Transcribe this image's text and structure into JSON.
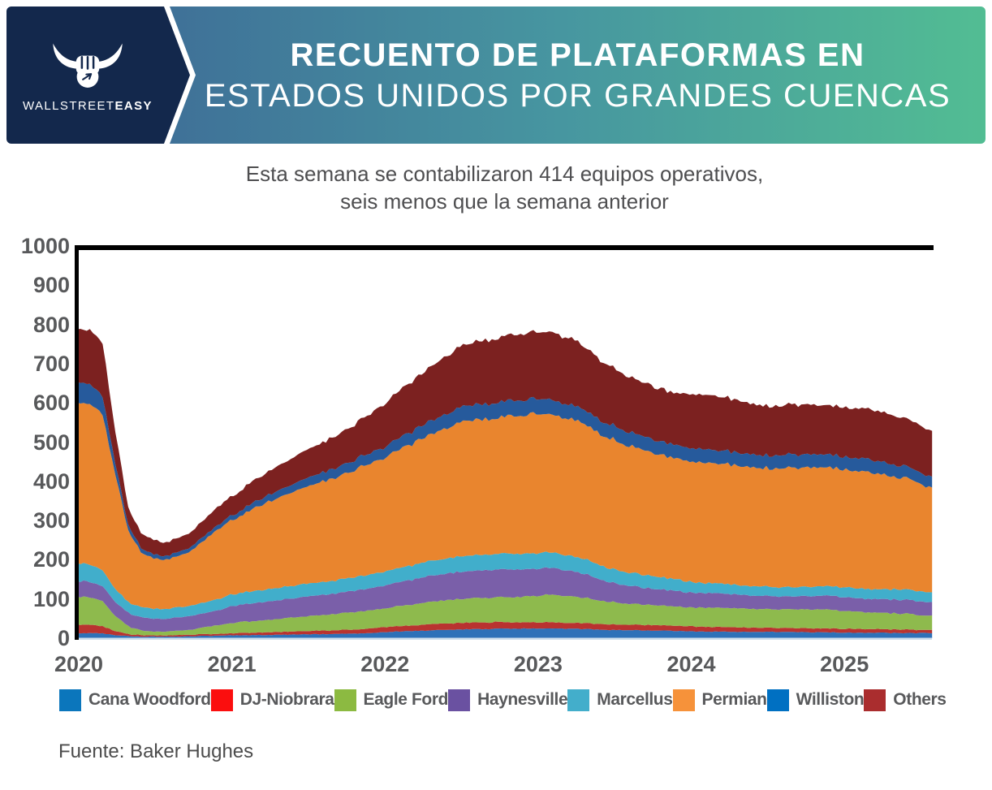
{
  "header": {
    "logo": {
      "brand_prefix": "WALLSTREET",
      "brand_suffix": "EASY",
      "icon": "bull-fist-icon"
    },
    "title_line1": "RECUENTO DE PLATAFORMAS EN",
    "title_line2": "ESTADOS UNIDOS POR GRANDES CUENCAS",
    "colors": {
      "navy": "#13284c",
      "gradient_start": "#3f7198",
      "gradient_mid": "#4796a0",
      "gradient_end": "#52bd93"
    }
  },
  "subtitle": {
    "line1": "Esta semana se contabilizaron 414 equipos operativos,",
    "line2": "seis menos que la semana anterior"
  },
  "source": "Fuente: Baker Hughes",
  "chart_data": {
    "type": "area",
    "stacked": true,
    "title": "Recuento de plataformas en Estados Unidos por grandes cuencas",
    "xlabel": "",
    "ylabel": "",
    "ylim": [
      0,
      1000
    ],
    "yticks": [
      0,
      100,
      200,
      300,
      400,
      500,
      600,
      700,
      800,
      900,
      1000
    ],
    "x_start_year": 2020,
    "x_resolution": "monthly",
    "x_range": [
      "2020-01",
      "2025-08"
    ],
    "x_tick_years": [
      2020,
      2021,
      2022,
      2023,
      2024,
      2025
    ],
    "grid": false,
    "legend_position": "bottom",
    "series": [
      {
        "id": "cana_woodford",
        "name": "Cana Woodford",
        "color": "#2e71b8",
        "legend_color": "#0b76bc",
        "values": [
          13,
          13,
          12,
          8,
          5,
          4,
          4,
          4,
          4,
          5,
          6,
          6,
          7,
          7,
          8,
          8,
          9,
          9,
          10,
          10,
          11,
          11,
          12,
          13,
          15,
          17,
          18,
          19,
          20,
          21,
          22,
          23,
          23,
          24,
          24,
          25,
          25,
          25,
          24,
          24,
          23,
          22,
          21,
          20,
          20,
          19,
          19,
          18,
          17,
          17,
          17,
          16,
          16,
          16,
          16,
          16,
          16,
          15,
          15,
          15,
          14,
          14,
          14,
          14,
          13,
          13,
          13,
          13
        ]
      },
      {
        "id": "dj_niobrara",
        "name": "DJ-Niobrara",
        "color": "#b93330",
        "legend_color": "#fb0e0e",
        "values": [
          22,
          21,
          19,
          10,
          5,
          4,
          3,
          3,
          4,
          4,
          4,
          5,
          5,
          6,
          6,
          7,
          7,
          8,
          8,
          9,
          9,
          10,
          10,
          12,
          13,
          14,
          14,
          15,
          16,
          16,
          17,
          17,
          17,
          17,
          16,
          16,
          16,
          16,
          15,
          15,
          15,
          14,
          14,
          14,
          14,
          14,
          13,
          13,
          13,
          12,
          12,
          12,
          11,
          11,
          10,
          10,
          10,
          10,
          10,
          10,
          10,
          10,
          9,
          9,
          9,
          9,
          8,
          8
        ]
      },
      {
        "id": "eagle_ford",
        "name": "Eagle Ford",
        "color": "#8eba4d",
        "legend_color": "#8cba41",
        "values": [
          72,
          70,
          64,
          38,
          20,
          12,
          10,
          10,
          11,
          13,
          18,
          22,
          25,
          28,
          30,
          32,
          34,
          36,
          38,
          40,
          41,
          43,
          45,
          46,
          47,
          50,
          52,
          55,
          57,
          59,
          61,
          62,
          62,
          63,
          64,
          65,
          68,
          70,
          69,
          67,
          64,
          60,
          57,
          54,
          52,
          51,
          50,
          50,
          48,
          49,
          49,
          48,
          48,
          47,
          47,
          47,
          48,
          48,
          48,
          48,
          45,
          44,
          43,
          42,
          41,
          40,
          38,
          36
        ]
      },
      {
        "id": "haynesville",
        "name": "Haynesville",
        "color": "#7a5fa9",
        "legend_color": "#6a51a1",
        "values": [
          40,
          39,
          38,
          36,
          34,
          33,
          33,
          33,
          34,
          35,
          36,
          38,
          43,
          44,
          46,
          47,
          48,
          49,
          50,
          51,
          52,
          53,
          55,
          56,
          58,
          61,
          63,
          65,
          67,
          68,
          69,
          70,
          70,
          71,
          71,
          70,
          70,
          69,
          67,
          64,
          60,
          55,
          50,
          46,
          44,
          42,
          41,
          40,
          38,
          38,
          37,
          36,
          35,
          34,
          34,
          33,
          33,
          34,
          34,
          35,
          35,
          34,
          34,
          35,
          35,
          35,
          35,
          34
        ]
      },
      {
        "id": "marcellus",
        "name": "Marcellus",
        "color": "#41aecb",
        "legend_color": "#43aecb",
        "values": [
          45,
          44,
          41,
          33,
          28,
          26,
          25,
          25,
          26,
          26,
          27,
          28,
          30,
          30,
          31,
          31,
          32,
          32,
          33,
          33,
          33,
          34,
          34,
          35,
          35,
          36,
          37,
          38,
          38,
          39,
          40,
          40,
          40,
          40,
          40,
          40,
          40,
          40,
          39,
          38,
          37,
          36,
          35,
          34,
          33,
          32,
          31,
          30,
          27,
          26,
          25,
          25,
          24,
          24,
          24,
          24,
          24,
          24,
          24,
          24,
          25,
          25,
          25,
          25,
          26,
          26,
          26,
          25
        ]
      },
      {
        "id": "permian",
        "name": "Permian",
        "color": "#e9852e",
        "legend_color": "#f6923a",
        "values": [
          410,
          408,
          400,
          290,
          185,
          140,
          128,
          125,
          130,
          140,
          160,
          178,
          190,
          200,
          212,
          222,
          232,
          240,
          248,
          254,
          260,
          268,
          276,
          283,
          290,
          300,
          308,
          318,
          326,
          334,
          342,
          346,
          346,
          348,
          352,
          354,
          355,
          353,
          351,
          349,
          342,
          334,
          330,
          325,
          320,
          314,
          310,
          308,
          305,
          307,
          306,
          305,
          302,
          300,
          302,
          303,
          304,
          303,
          302,
          304,
          300,
          298,
          296,
          292,
          288,
          282,
          274,
          266
        ]
      },
      {
        "id": "williston",
        "name": "Williston",
        "color": "#265a9c",
        "legend_color": "#0070c2",
        "values": [
          52,
          50,
          47,
          28,
          14,
          11,
          10,
          10,
          10,
          10,
          11,
          11,
          12,
          14,
          16,
          17,
          19,
          20,
          22,
          23,
          24,
          25,
          26,
          27,
          27,
          29,
          31,
          33,
          35,
          36,
          38,
          39,
          39,
          40,
          40,
          39,
          38,
          38,
          37,
          37,
          36,
          36,
          36,
          35,
          35,
          35,
          34,
          34,
          35,
          35,
          34,
          34,
          33,
          33,
          33,
          33,
          34,
          34,
          33,
          33,
          32,
          33,
          33,
          32,
          31,
          30,
          29,
          28
        ]
      },
      {
        "id": "others",
        "name": "Others",
        "color": "#7c2120",
        "legend_color": "#aa2d2e",
        "values": [
          136,
          138,
          135,
          80,
          45,
          38,
          36,
          35,
          36,
          38,
          42,
          46,
          48,
          52,
          56,
          60,
          64,
          68,
          72,
          76,
          80,
          85,
          92,
          100,
          110,
          118,
          126,
          134,
          141,
          148,
          155,
          160,
          162,
          164,
          168,
          170,
          172,
          173,
          170,
          166,
          160,
          154,
          148,
          142,
          138,
          136,
          134,
          132,
          139,
          140,
          138,
          136,
          132,
          128,
          126,
          126,
          127,
          126,
          125,
          126,
          126,
          127,
          128,
          127,
          125,
          122,
          120,
          118
        ]
      }
    ]
  }
}
